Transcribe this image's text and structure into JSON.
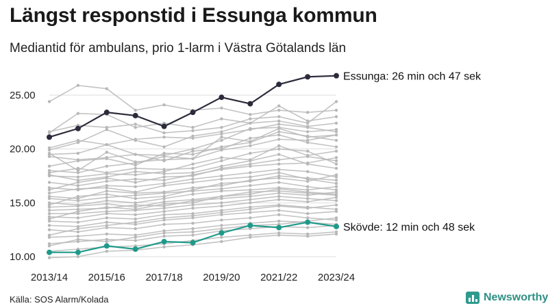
{
  "header": {
    "title": "Längst responstid i Essunga kommun",
    "subtitle": "Mediantid för ambulans, prio 1-larm i Västra Götalands län"
  },
  "footer": {
    "source": "Källa: SOS Alarm/Kolada",
    "brand": "Newsworthy",
    "brand_icon": "bar-chart-icon"
  },
  "colors": {
    "highlight_high": "#2b2b3b",
    "highlight_low": "#1f9a8a",
    "background_series": "#b8b8b8",
    "grid": "#dddddd"
  },
  "chart_data": {
    "type": "line",
    "x": [
      "2013/14",
      "2014/15",
      "2015/16",
      "2016/17",
      "2017/18",
      "2018/19",
      "2019/20",
      "2020/21",
      "2021/22",
      "2022/23",
      "2023/24"
    ],
    "x_tick_labels": [
      "2013/14",
      "2015/16",
      "2017/18",
      "2019/20",
      "2021/22",
      "2023/24"
    ],
    "y_tick_labels": [
      "10.00",
      "15.00",
      "20.00",
      "25.00"
    ],
    "y_ticks": [
      10,
      15,
      20,
      25
    ],
    "ylim": [
      10,
      27.8
    ],
    "grid": "horizontal",
    "legend": "none",
    "highlighted_series": [
      {
        "name": "Essunga",
        "label": "Essunga: 26 min och 47 sek",
        "color": "#2b2b3b",
        "values": [
          21.1,
          21.9,
          23.4,
          23.1,
          22.1,
          23.4,
          24.8,
          24.2,
          26.0,
          26.7,
          26.8
        ]
      },
      {
        "name": "Skövde",
        "label": "Skövde: 12 min och 48 sek",
        "color": "#1f9a8a",
        "values": [
          10.4,
          10.4,
          11.0,
          10.7,
          11.4,
          11.3,
          12.2,
          12.9,
          12.7,
          13.2,
          12.8
        ]
      }
    ],
    "background_series": [
      {
        "values": [
          24.4,
          25.9,
          25.6,
          23.6,
          24.1,
          23.6,
          23.8,
          23.2,
          23.6,
          23.4,
          23.6
        ]
      },
      {
        "values": [
          21.5,
          23.3,
          23.2,
          22.0,
          22.4,
          22.0,
          22.8,
          22.4,
          22.6,
          22.1,
          22.4
        ]
      },
      {
        "values": [
          21.6,
          22.2,
          22.0,
          22.3,
          21.5,
          21.7,
          22.0,
          22.8,
          23.0,
          22.4,
          24.4
        ]
      },
      {
        "values": [
          19.9,
          20.6,
          21.8,
          20.8,
          20.2,
          21.2,
          21.6,
          22.4,
          24.0,
          22.6,
          23.0
        ]
      },
      {
        "values": [
          19.5,
          19.6,
          20.4,
          19.5,
          19.4,
          20.0,
          20.8,
          21.9,
          22.0,
          21.6,
          21.8
        ]
      },
      {
        "values": [
          19.6,
          18.0,
          19.7,
          18.8,
          19.0,
          19.1,
          21.1,
          20.7,
          21.9,
          21.1,
          21.3
        ]
      },
      {
        "values": [
          19.3,
          19.0,
          19.2,
          19.5,
          18.9,
          19.8,
          20.0,
          21.0,
          21.3,
          20.6,
          20.2
        ]
      },
      {
        "values": [
          18.0,
          17.8,
          18.4,
          18.7,
          19.3,
          19.1,
          19.9,
          20.3,
          20.9,
          20.8,
          21.3
        ]
      },
      {
        "values": [
          17.8,
          18.2,
          17.8,
          18.2,
          18.1,
          18.2,
          18.9,
          19.6,
          20.0,
          19.8,
          18.6
        ]
      },
      {
        "values": [
          17.5,
          17.4,
          17.7,
          17.6,
          17.9,
          18.6,
          19.2,
          19.0,
          20.3,
          19.4,
          19.8
        ]
      },
      {
        "values": [
          17.6,
          17.1,
          17.4,
          17.9,
          17.7,
          17.8,
          18.4,
          18.9,
          19.5,
          18.6,
          18.2
        ]
      },
      {
        "values": [
          16.9,
          16.6,
          17.0,
          17.2,
          17.1,
          17.6,
          18.1,
          18.4,
          18.6,
          18.7,
          19.2
        ]
      },
      {
        "values": [
          16.4,
          16.2,
          16.6,
          16.5,
          16.8,
          17.2,
          17.5,
          17.8,
          18.1,
          17.9,
          17.4
        ]
      },
      {
        "values": [
          15.9,
          16.3,
          16.4,
          16.0,
          16.6,
          16.9,
          17.2,
          17.4,
          17.8,
          17.2,
          16.8
        ]
      },
      {
        "values": [
          15.6,
          15.4,
          16.1,
          15.9,
          16.0,
          16.4,
          16.6,
          17.1,
          17.3,
          17.0,
          17.6
        ]
      },
      {
        "values": [
          15.4,
          15.2,
          15.5,
          15.7,
          15.9,
          16.1,
          16.3,
          16.6,
          16.9,
          16.5,
          16.2
        ]
      },
      {
        "values": [
          15.0,
          14.8,
          15.2,
          15.0,
          15.4,
          15.8,
          16.1,
          16.2,
          16.4,
          16.2,
          16.5
        ]
      },
      {
        "values": [
          14.6,
          14.7,
          14.9,
          14.6,
          15.1,
          15.3,
          15.6,
          16.0,
          16.1,
          15.9,
          15.7
        ]
      },
      {
        "values": [
          14.3,
          14.4,
          14.5,
          14.8,
          14.7,
          15.2,
          15.4,
          15.6,
          15.9,
          15.7,
          16.0
        ]
      },
      {
        "values": [
          14.0,
          14.0,
          14.2,
          14.3,
          14.5,
          14.8,
          15.0,
          15.3,
          15.6,
          15.4,
          15.2
        ]
      },
      {
        "values": [
          13.7,
          13.6,
          14.0,
          13.9,
          14.2,
          14.5,
          14.7,
          15.0,
          15.3,
          15.1,
          15.5
        ]
      },
      {
        "values": [
          13.3,
          13.2,
          13.6,
          13.5,
          13.9,
          14.0,
          14.3,
          14.6,
          14.8,
          14.6,
          14.4
        ]
      },
      {
        "values": [
          12.9,
          12.8,
          13.2,
          13.0,
          13.4,
          13.6,
          13.9,
          14.1,
          14.3,
          14.0,
          14.2
        ]
      },
      {
        "values": [
          12.5,
          12.3,
          12.7,
          12.6,
          13.0,
          13.1,
          13.4,
          13.6,
          13.9,
          13.6,
          13.4
        ]
      },
      {
        "values": [
          11.8,
          11.9,
          12.1,
          12.0,
          12.4,
          12.6,
          12.9,
          13.1,
          13.3,
          13.2,
          13.0
        ]
      },
      {
        "values": [
          11.2,
          11.4,
          11.6,
          11.5,
          11.9,
          12.0,
          12.4,
          12.6,
          12.8,
          12.7,
          12.9
        ]
      },
      {
        "values": [
          10.5,
          10.7,
          10.9,
          11.0,
          11.2,
          11.5,
          11.8,
          12.0,
          12.2,
          12.1,
          12.3
        ]
      },
      {
        "values": [
          9.9,
          10.0,
          10.5,
          10.6,
          10.9,
          11.1,
          11.4,
          11.8,
          12.0,
          11.9,
          12.1
        ]
      },
      {
        "values": [
          20.1,
          20.8,
          20.4,
          20.9,
          21.1,
          21.0,
          21.4,
          21.8,
          22.3,
          22.0,
          21.6
        ]
      },
      {
        "values": [
          18.4,
          18.9,
          19.1,
          18.5,
          19.6,
          19.5,
          20.2,
          20.6,
          21.6,
          21.2,
          20.8
        ]
      },
      {
        "values": [
          16.2,
          16.9,
          17.3,
          16.9,
          17.4,
          17.5,
          18.2,
          18.6,
          19.0,
          19.3,
          18.9
        ]
      },
      {
        "values": [
          14.8,
          15.6,
          15.8,
          15.4,
          15.6,
          16.2,
          16.8,
          17.0,
          17.5,
          17.3,
          17.1
        ]
      },
      {
        "values": [
          13.5,
          14.2,
          14.6,
          14.4,
          14.9,
          15.0,
          15.6,
          15.8,
          16.3,
          16.0,
          15.8
        ]
      },
      {
        "values": [
          12.0,
          12.6,
          12.9,
          13.2,
          13.6,
          13.8,
          14.1,
          14.4,
          14.7,
          14.5,
          14.8
        ]
      },
      {
        "values": [
          11.0,
          11.6,
          11.4,
          11.8,
          12.2,
          12.3,
          12.6,
          12.9,
          13.0,
          13.3,
          13.6
        ]
      }
    ]
  }
}
